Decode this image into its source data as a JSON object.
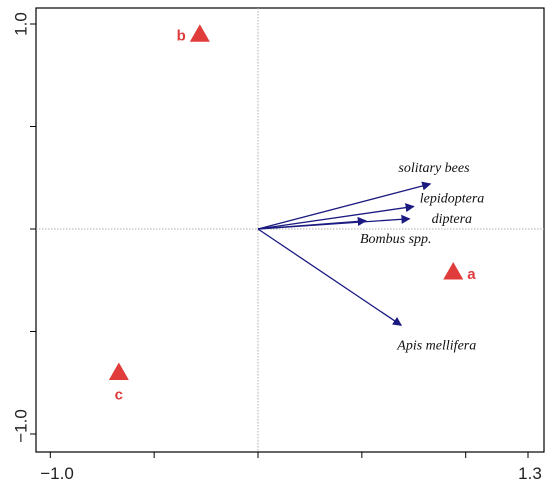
{
  "chart_data": {
    "type": "scatter",
    "subtype": "ordination-biplot",
    "title": "",
    "xlabel": "",
    "ylabel": "",
    "xlim": [
      -1.0,
      1.3
    ],
    "ylim": [
      -1.0,
      1.0
    ],
    "x_tick_labels": [
      "−1.0",
      "1.3"
    ],
    "y_tick_labels": [
      "1.0",
      "−1.0"
    ],
    "grid": false,
    "reference_lines": [
      "x=0",
      "y=0"
    ],
    "colors": {
      "arrows": "#1a1a80",
      "sites": "#e03c3c",
      "axes": "#000000",
      "reference": "#b0b0b0"
    },
    "species_vectors": [
      {
        "name": "solitary bees",
        "x": 0.83,
        "y": 0.22
      },
      {
        "name": "lepidoptera",
        "x": 0.75,
        "y": 0.11
      },
      {
        "name": "diptera",
        "x": 0.73,
        "y": 0.05
      },
      {
        "name": "Bombus spp.",
        "x": 0.52,
        "y": 0.04
      },
      {
        "name": "Apis mellifera",
        "x": 0.69,
        "y": -0.47
      }
    ],
    "sites": [
      {
        "name": "a",
        "x": 0.94,
        "y": -0.21
      },
      {
        "name": "b",
        "x": -0.28,
        "y": 0.95
      },
      {
        "name": "c",
        "x": -0.67,
        "y": -0.7
      }
    ]
  }
}
